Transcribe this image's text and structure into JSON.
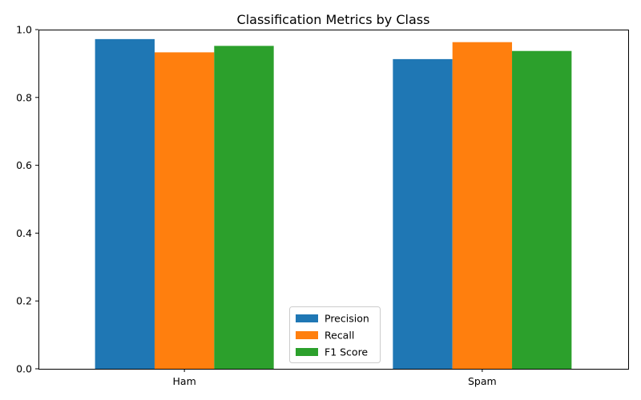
{
  "chart_data": {
    "type": "bar",
    "title": "Classification Metrics by Class",
    "xlabel": "",
    "ylabel": "",
    "categories": [
      "Ham",
      "Spam"
    ],
    "series": [
      {
        "name": "Precision",
        "values": [
          0.972,
          0.913
        ],
        "color": "#1f77b4"
      },
      {
        "name": "Recall",
        "values": [
          0.933,
          0.963
        ],
        "color": "#ff7f0e"
      },
      {
        "name": "F1 Score",
        "values": [
          0.952,
          0.937
        ],
        "color": "#2ca02c"
      }
    ],
    "ylim": [
      0,
      1.0
    ],
    "yticks": [
      "0.0",
      "0.2",
      "0.4",
      "0.6",
      "0.8",
      "1.0"
    ],
    "grid": false,
    "legend_position": "bottom-center"
  }
}
